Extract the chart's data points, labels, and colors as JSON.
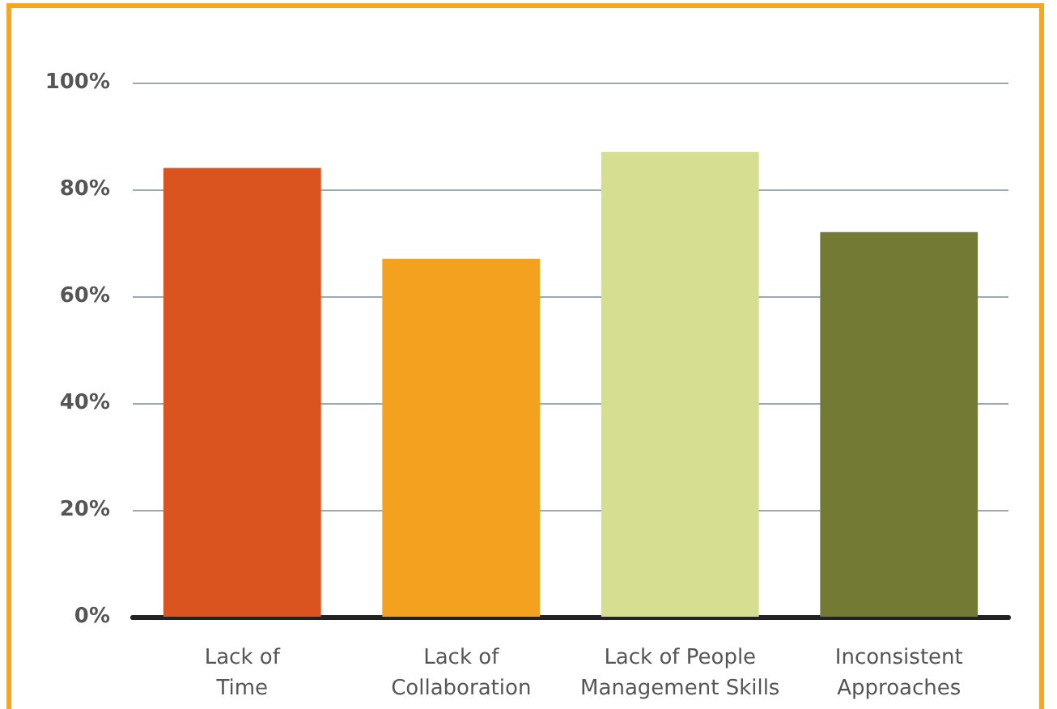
{
  "chart_data": {
    "type": "bar",
    "categories": [
      "Lack of\nTime",
      "Lack of\nCollaboration",
      "Lack of People\nManagement Skills",
      "Inconsistent\nApproaches"
    ],
    "values": [
      84,
      67,
      87,
      72
    ],
    "colors": [
      "#d9541e",
      "#f4a11f",
      "#d5de91",
      "#737a33"
    ],
    "ylim": [
      0,
      100
    ],
    "yticks": [
      {
        "value": 0,
        "label": "0%"
      },
      {
        "value": 20,
        "label": "20%"
      },
      {
        "value": 40,
        "label": "40%"
      },
      {
        "value": 60,
        "label": "60%"
      },
      {
        "value": 80,
        "label": "80%"
      },
      {
        "value": 100,
        "label": "100%"
      }
    ],
    "grid": "y"
  }
}
